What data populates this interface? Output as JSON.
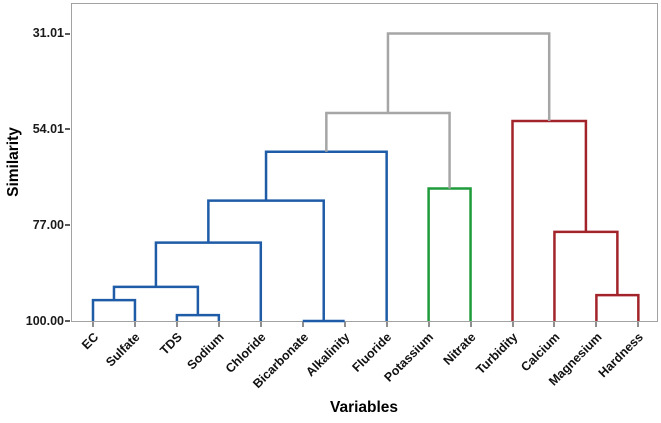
{
  "figure": {
    "xlabel": "Variables",
    "ylabel": "Similarity"
  },
  "chart_data": {
    "type": "dendrogram",
    "title": "",
    "xlabel": "Variables",
    "ylabel": "Similarity",
    "y_axis": {
      "tick_labels": [
        "31.01",
        "54.01",
        "77.00",
        "100.00"
      ],
      "tick_values": [
        31.01,
        54.01,
        77.0,
        100.0
      ],
      "orientation": "similarity increases downward; 100 at leaf baseline",
      "grid": false
    },
    "leaves": [
      "EC",
      "Sulfate",
      "TDS",
      "Sodium",
      "Chloride",
      "Bicarbonate",
      "Alkalinity",
      "Fluoride",
      "Potassium",
      "Nitrate",
      "Turbidity",
      "Calcium",
      "Magnesium",
      "Hardness"
    ],
    "merges": [
      {
        "a": "EC",
        "b": "Sulfate",
        "similarity": 95.0,
        "color": "blue"
      },
      {
        "a": "TDS",
        "b": "Sodium",
        "similarity": 98.6,
        "color": "blue"
      },
      {
        "a": 0,
        "b": 1,
        "similarity": 91.8,
        "color": "blue"
      },
      {
        "a": 2,
        "b": "Chloride",
        "similarity": 81.2,
        "color": "blue"
      },
      {
        "a": "Bicarbonate",
        "b": "Alkalinity",
        "similarity": 100.0,
        "color": "blue"
      },
      {
        "a": 3,
        "b": 4,
        "similarity": 71.1,
        "color": "blue"
      },
      {
        "a": 5,
        "b": "Fluoride",
        "similarity": 59.4,
        "color": "blue"
      },
      {
        "a": "Potassium",
        "b": "Nitrate",
        "similarity": 68.2,
        "color": "green"
      },
      {
        "a": "Magnesium",
        "b": "Hardness",
        "similarity": 93.8,
        "color": "red"
      },
      {
        "a": "Calcium",
        "b": 8,
        "similarity": 78.6,
        "color": "red"
      },
      {
        "a": "Turbidity",
        "b": 9,
        "similarity": 52.0,
        "color": "red"
      },
      {
        "a": 6,
        "b": 7,
        "similarity": 50.1,
        "color": "gray"
      },
      {
        "a": 11,
        "b": 10,
        "similarity": 31.01,
        "color": "gray"
      }
    ],
    "colors": {
      "blue": "#1e5ca8",
      "green": "#1e9b3b",
      "red": "#a2242a",
      "gray": "#a6a6a6"
    },
    "cluster_legend": [
      {
        "members": [
          "EC",
          "Sulfate",
          "TDS",
          "Sodium",
          "Chloride",
          "Bicarbonate",
          "Alkalinity",
          "Fluoride"
        ],
        "color": "blue"
      },
      {
        "members": [
          "Potassium",
          "Nitrate"
        ],
        "color": "green"
      },
      {
        "members": [
          "Turbidity",
          "Calcium",
          "Magnesium",
          "Hardness"
        ],
        "color": "red"
      }
    ]
  }
}
